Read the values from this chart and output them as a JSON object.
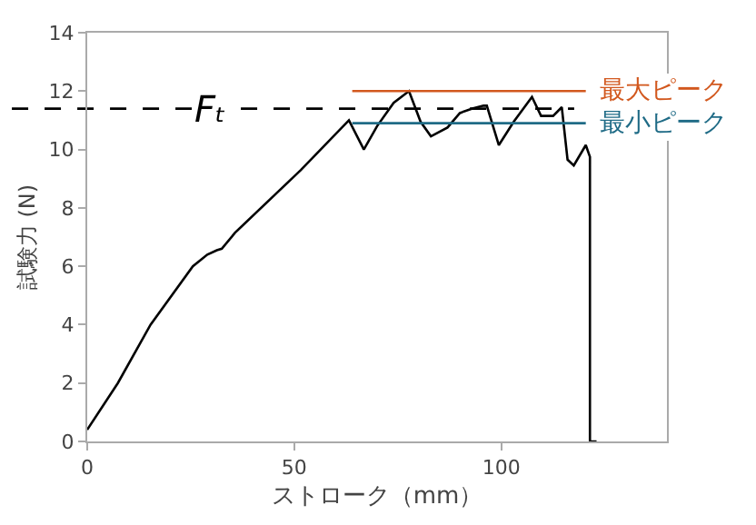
{
  "chart_data": {
    "type": "line",
    "xlabel": "ストローク（mm）",
    "ylabel": "試験力 (N)",
    "xlim": [
      0,
      140
    ],
    "xticks": [
      0,
      50,
      100
    ],
    "ylim": [
      0,
      14
    ],
    "yticks": [
      0,
      2,
      4,
      6,
      8,
      10,
      12,
      14
    ],
    "legend": false,
    "marker": "none",
    "series": [
      {
        "color": "#000000",
        "line_style": "solid",
        "x": [
          0,
          7.4,
          15.3,
          25.5,
          29,
          31.3,
          32.5,
          35.7,
          51.6,
          63.2,
          66.8,
          70,
          74,
          77.7,
          80.5,
          83,
          87,
          90,
          93,
          95.7,
          96.5,
          99.4,
          103,
          107.4,
          109.6,
          112.5,
          114.6,
          116,
          117.5,
          120.4,
          121.4,
          121.4,
          123
        ],
        "values": [
          0.4,
          2,
          4,
          6,
          6.4,
          6.55,
          6.6,
          7.15,
          9.3,
          11.0,
          10.0,
          10.8,
          11.6,
          12.0,
          10.95,
          10.45,
          10.75,
          11.25,
          11.4,
          11.5,
          11.5,
          10.15,
          10.95,
          11.8,
          11.15,
          11.15,
          11.45,
          9.65,
          9.45,
          10.15,
          9.75,
          0,
          0
        ]
      },
      {
        "name": "最大ピーク",
        "color": "#d2581e",
        "line_style": "solid",
        "x": [
          64,
          120.4
        ],
        "values": [
          12.0,
          12.0
        ]
      },
      {
        "name": "最小ピーク",
        "color": "#1f6b86",
        "line_style": "solid",
        "x": [
          64,
          120.4
        ],
        "values": [
          10.9,
          10.9
        ]
      }
    ],
    "ref_lines": [
      {
        "axis": "y",
        "value": 11.4,
        "label": "Fₜ",
        "color": "#000000",
        "line_style": "dashed"
      }
    ]
  }
}
